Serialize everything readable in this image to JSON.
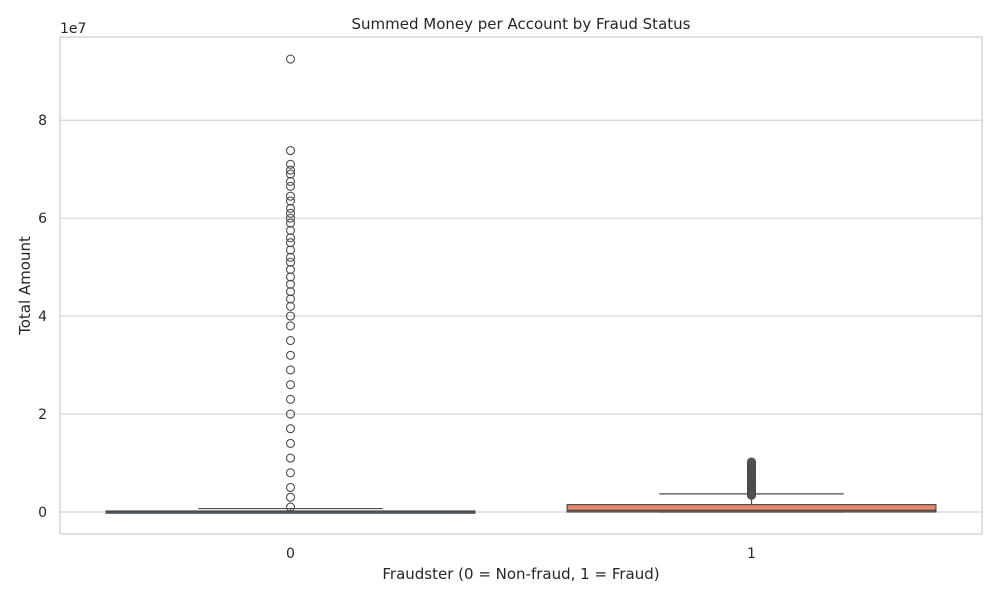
{
  "chart_data": {
    "type": "box",
    "title": "Summed Money per Account by Fraud Status",
    "xlabel": "Fraudster (0 = Non-fraud, 1 = Fraud)",
    "ylabel": "Total Amount",
    "y_offset_label": "1e7",
    "y_scale_factor": 10000000,
    "categories": [
      "0",
      "1"
    ],
    "ylim": [
      -0.45,
      9.7
    ],
    "yticks": [
      0,
      2,
      4,
      6,
      8
    ],
    "ytick_labels": [
      "0",
      "2",
      "4",
      "6",
      "8"
    ],
    "grid": true,
    "boxes": [
      {
        "category": "0",
        "color": "#5a86b8",
        "q1": 0.0,
        "median": 0.005,
        "q3": 0.02,
        "whisker_low": 0.0,
        "whisker_high": 0.07,
        "outliers": [
          0.1,
          0.3,
          0.5,
          0.8,
          1.1,
          1.4,
          1.7,
          2.0,
          2.3,
          2.6,
          2.9,
          3.2,
          3.5,
          3.8,
          4.0,
          4.2,
          4.35,
          4.5,
          4.65,
          4.8,
          4.95,
          5.1,
          5.2,
          5.35,
          5.5,
          5.6,
          5.75,
          5.9,
          6.0,
          6.1,
          6.2,
          6.35,
          6.45,
          6.65,
          6.75,
          6.9,
          6.98,
          7.1,
          7.38,
          9.25
        ]
      },
      {
        "category": "1",
        "color": "#e8866a",
        "q1": 0.0,
        "median": 0.03,
        "q3": 0.15,
        "whisker_low": 0.0,
        "whisker_high": 0.37,
        "outliers": [
          0.34,
          0.36,
          0.38,
          0.4,
          0.42,
          0.44,
          0.46,
          0.48,
          0.5,
          0.52,
          0.54,
          0.56,
          0.58,
          0.6,
          0.62,
          0.64,
          0.66,
          0.68,
          0.7,
          0.72,
          0.74,
          0.76,
          0.78,
          0.8,
          0.82,
          0.84,
          0.86,
          0.88,
          0.9,
          0.92,
          0.94,
          0.96,
          0.98,
          1.0,
          1.02
        ]
      }
    ]
  }
}
